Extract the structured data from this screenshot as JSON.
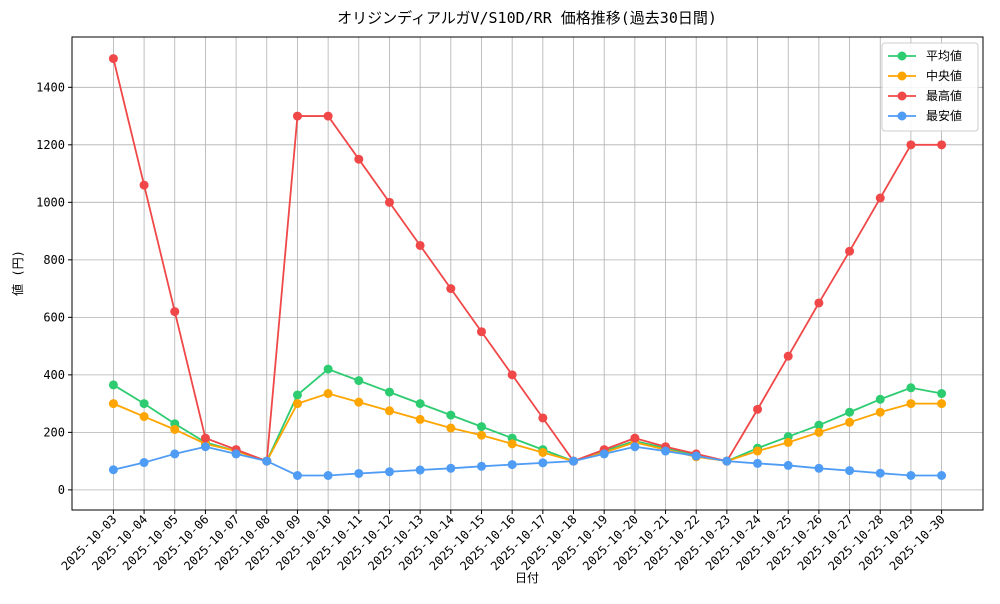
{
  "chart_data": {
    "type": "line",
    "title": "オリジンディアルガV/S10D/RR 価格推移(過去30日間)",
    "x_label": "日付",
    "y_label": "値 (円)",
    "categories": [
      "2025-10-03",
      "2025-10-04",
      "2025-10-05",
      "2025-10-06",
      "2025-10-07",
      "2025-10-08",
      "2025-10-09",
      "2025-10-10",
      "2025-10-11",
      "2025-10-12",
      "2025-10-13",
      "2025-10-14",
      "2025-10-15",
      "2025-10-16",
      "2025-10-17",
      "2025-10-18",
      "2025-10-19",
      "2025-10-20",
      "2025-10-21",
      "2025-10-22",
      "2025-10-23",
      "2025-10-24",
      "2025-10-25",
      "2025-10-26",
      "2025-10-27",
      "2025-10-28",
      "2025-10-29",
      "2025-10-30"
    ],
    "series": [
      {
        "name": "平均値",
        "color": "#2ecc71",
        "values": [
          365,
          300,
          230,
          165,
          135,
          100,
          330,
          420,
          380,
          340,
          300,
          260,
          220,
          180,
          140,
          100,
          135,
          170,
          145,
          120,
          100,
          145,
          185,
          225,
          270,
          315,
          355,
          335
        ]
      },
      {
        "name": "中央値",
        "color": "#ffa500",
        "values": [
          300,
          255,
          210,
          160,
          135,
          100,
          300,
          335,
          305,
          275,
          245,
          215,
          190,
          160,
          130,
          100,
          130,
          165,
          140,
          115,
          100,
          135,
          165,
          200,
          235,
          270,
          300,
          300
        ]
      },
      {
        "name": "最高値",
        "color": "#f04848",
        "values": [
          1500,
          1060,
          620,
          180,
          140,
          100,
          1300,
          1300,
          1150,
          1000,
          850,
          700,
          550,
          400,
          250,
          100,
          140,
          180,
          150,
          125,
          100,
          280,
          465,
          650,
          830,
          1015,
          1200,
          1200
        ]
      },
      {
        "name": "最安値",
        "color": "#4f9cf5",
        "values": [
          70,
          95,
          125,
          150,
          125,
          100,
          50,
          50,
          57,
          63,
          69,
          75,
          82,
          88,
          94,
          100,
          125,
          150,
          135,
          118,
          100,
          92,
          85,
          75,
          67,
          58,
          50,
          50
        ]
      }
    ],
    "ylim": [
      -70,
      1575
    ],
    "yticks": [
      0,
      200,
      400,
      600,
      800,
      1000,
      1200,
      1400
    ],
    "grid": true,
    "legend": "upper right"
  }
}
